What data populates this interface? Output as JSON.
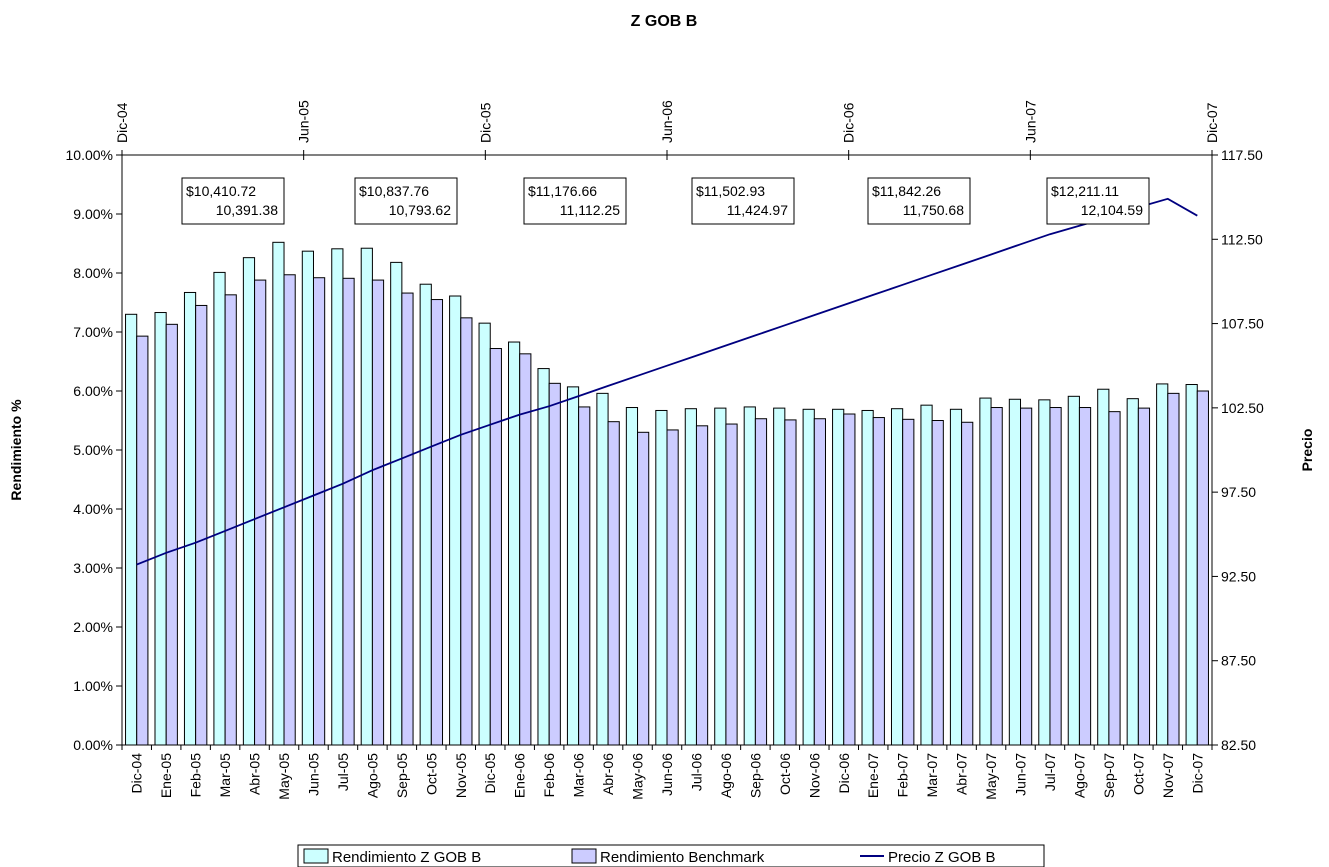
{
  "chart_data": {
    "type": "bar",
    "title": "Z GOB B",
    "ylabel": "Rendimiento %",
    "y2label": "Precio",
    "ylim": [
      0,
      10
    ],
    "y2lim": [
      82.5,
      117.5
    ],
    "yticks": [
      "0.00%",
      "1.00%",
      "2.00%",
      "3.00%",
      "4.00%",
      "5.00%",
      "6.00%",
      "7.00%",
      "8.00%",
      "9.00%",
      "10.00%"
    ],
    "y2ticks": [
      "82.50",
      "87.50",
      "92.50",
      "97.50",
      "102.50",
      "107.50",
      "112.50",
      "117.50"
    ],
    "categories": [
      "Dic-04",
      "Ene-05",
      "Feb-05",
      "Mar-05",
      "Abr-05",
      "May-05",
      "Jun-05",
      "Jul-05",
      "Ago-05",
      "Sep-05",
      "Oct-05",
      "Nov-05",
      "Dic-05",
      "Ene-06",
      "Feb-06",
      "Mar-06",
      "Abr-06",
      "May-06",
      "Jun-06",
      "Jul-06",
      "Ago-06",
      "Sep-06",
      "Oct-06",
      "Nov-06",
      "Dic-06",
      "Ene-07",
      "Feb-07",
      "Mar-07",
      "Abr-07",
      "May-07",
      "Jun-07",
      "Jul-07",
      "Ago-07",
      "Sep-07",
      "Oct-07",
      "Nov-07",
      "Dic-07"
    ],
    "top_axis_labels": [
      "Dic-04",
      "Jun-05",
      "Dic-05",
      "Jun-06",
      "Dic-06",
      "Jun-07",
      "Dic-07"
    ],
    "series": [
      {
        "name": "Rendimiento Z GOB B",
        "kind": "bar",
        "color": "#ccffff",
        "values": [
          7.3,
          7.33,
          7.67,
          8.01,
          8.26,
          8.52,
          8.37,
          8.41,
          8.42,
          8.18,
          7.81,
          7.61,
          7.15,
          6.83,
          6.38,
          6.07,
          5.96,
          5.72,
          5.67,
          5.7,
          5.71,
          5.73,
          5.71,
          5.69,
          5.69,
          5.67,
          5.7,
          5.76,
          5.69,
          5.88,
          5.86,
          5.85,
          5.91,
          6.03,
          5.87,
          6.12,
          6.11
        ]
      },
      {
        "name": "Rendimiento Benchmark",
        "kind": "bar",
        "color": "#ccccff",
        "values": [
          6.93,
          7.13,
          7.45,
          7.63,
          7.88,
          7.97,
          7.92,
          7.91,
          7.88,
          7.66,
          7.55,
          7.24,
          6.72,
          6.63,
          6.13,
          5.73,
          5.48,
          5.3,
          5.34,
          5.41,
          5.44,
          5.53,
          5.51,
          5.53,
          5.61,
          5.55,
          5.52,
          5.5,
          5.47,
          5.72,
          5.71,
          5.72,
          5.72,
          5.65,
          5.71,
          5.96,
          6.0
        ]
      },
      {
        "name": "Precio Z GOB B",
        "kind": "line",
        "axis": "right",
        "color": "#000080",
        "values": [
          93.2,
          93.9,
          94.5,
          95.2,
          95.9,
          96.6,
          97.3,
          98.0,
          98.8,
          99.5,
          100.2,
          100.9,
          101.5,
          102.1,
          102.6,
          103.2,
          103.8,
          104.4,
          105.0,
          105.6,
          106.2,
          106.8,
          107.4,
          108.0,
          108.6,
          109.2,
          109.8,
          110.4,
          111.0,
          111.6,
          112.2,
          112.8,
          113.3,
          113.8,
          114.4,
          114.9,
          113.9
        ]
      }
    ],
    "annotations": [
      {
        "line1": "$10,410.72",
        "line2": "10,391.38"
      },
      {
        "line1": "$10,837.76",
        "line2": "10,793.62"
      },
      {
        "line1": "$11,176.66",
        "line2": "11,112.25"
      },
      {
        "line1": "$11,502.93",
        "line2": "11,424.97"
      },
      {
        "line1": "$11,842.26",
        "line2": "11,750.68"
      },
      {
        "line1": "$12,211.11",
        "line2": "12,104.59"
      }
    ],
    "legend_position": "bottom"
  }
}
